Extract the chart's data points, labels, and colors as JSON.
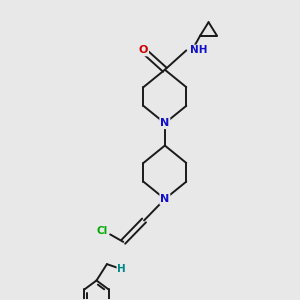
{
  "background_color": "#e8e8e8",
  "atom_colors": {
    "C": "#000000",
    "N": "#1010cc",
    "O": "#cc0000",
    "Cl": "#00aa00",
    "H": "#008888"
  },
  "bond_color": "#1a1a1a",
  "bond_width": 1.4,
  "figsize": [
    3.0,
    3.0
  ],
  "dpi": 100,
  "xlim": [
    0,
    10
  ],
  "ylim": [
    0,
    10
  ]
}
